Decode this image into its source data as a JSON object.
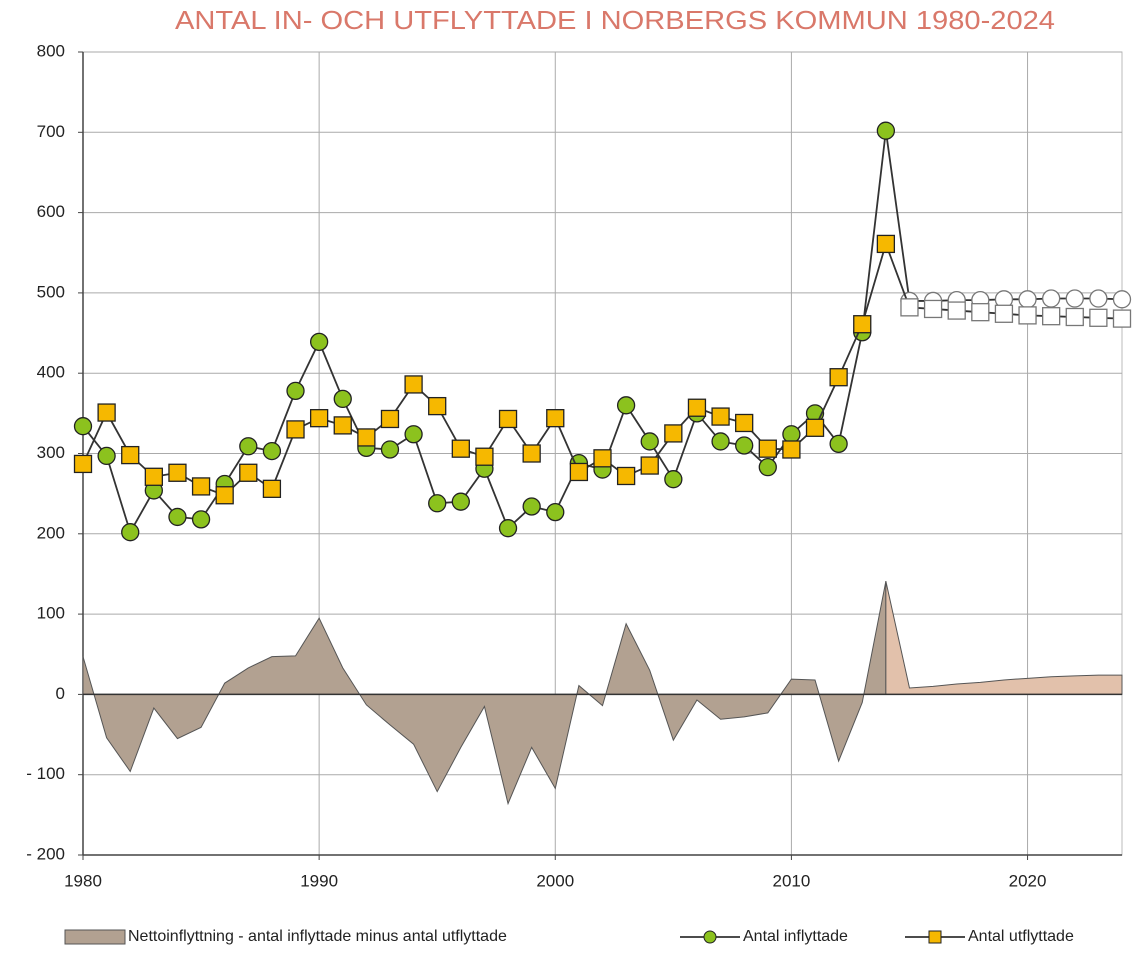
{
  "chart_data": {
    "type": "line",
    "title": "ANTAL IN- OCH UTFLYTTADE I NORBERGS KOMMUN 1980-2024",
    "title_color": "#d9786a",
    "x": [
      1980,
      1981,
      1982,
      1983,
      1984,
      1985,
      1986,
      1987,
      1988,
      1989,
      1990,
      1991,
      1992,
      1993,
      1994,
      1995,
      1996,
      1997,
      1998,
      1999,
      2000,
      2001,
      2002,
      2003,
      2004,
      2005,
      2006,
      2007,
      2008,
      2009,
      2010,
      2011,
      2012,
      2013,
      2014,
      2015,
      2016,
      2017,
      2018,
      2019,
      2020,
      2021,
      2022,
      2023,
      2024
    ],
    "xlim": [
      1980,
      2024
    ],
    "xticks": [
      1980,
      1990,
      2000,
      2010,
      2020
    ],
    "ylim": [
      -200,
      800
    ],
    "yticks": [
      {
        "value": -200,
        "label": "- 200"
      },
      {
        "value": -100,
        "label": "- 100"
      },
      0,
      100,
      200,
      300,
      400,
      500,
      600,
      700,
      800
    ],
    "grid": true,
    "legend": "bottom",
    "forecast_from": 2015,
    "forecast_color": "#ffffff",
    "series": [
      {
        "name": "Nettoinflyttning - antal inflyttade minus antal utflyttade",
        "kind": "area",
        "color": "#b2a191",
        "forecast_area_color": "#e2c1ab",
        "values": [
          47,
          -54,
          -96,
          -17,
          -55,
          -41,
          14,
          33,
          47,
          48,
          95,
          33,
          -13,
          -38,
          -62,
          -121,
          -66,
          -15,
          -136,
          -66,
          -117,
          11,
          -14,
          88,
          30,
          -57,
          -7,
          -31,
          -28,
          -23,
          19,
          18,
          -83,
          -10,
          141,
          8,
          10,
          13,
          15,
          18,
          20,
          22,
          23,
          24,
          24
        ]
      },
      {
        "name": "Antal inflyttade",
        "kind": "line",
        "marker": "circle",
        "color": "#8cc21e",
        "values": [
          334,
          297,
          202,
          254,
          221,
          218,
          262,
          309,
          303,
          378,
          439,
          368,
          307,
          305,
          324,
          238,
          240,
          281,
          207,
          234,
          227,
          288,
          280,
          360,
          315,
          268,
          350,
          315,
          310,
          283,
          324,
          350,
          312,
          451,
          702,
          490,
          490,
          491,
          491,
          492,
          492,
          493,
          493,
          493,
          492
        ]
      },
      {
        "name": "Antal utflyttade",
        "kind": "line",
        "marker": "square",
        "color": "#f6b800",
        "values": [
          287,
          351,
          298,
          271,
          276,
          259,
          248,
          276,
          256,
          330,
          344,
          335,
          320,
          343,
          386,
          359,
          306,
          296,
          343,
          300,
          344,
          277,
          294,
          272,
          285,
          325,
          357,
          346,
          338,
          306,
          305,
          332,
          395,
          461,
          561,
          482,
          480,
          478,
          476,
          474,
          472,
          471,
          470,
          469,
          468
        ]
      }
    ]
  }
}
